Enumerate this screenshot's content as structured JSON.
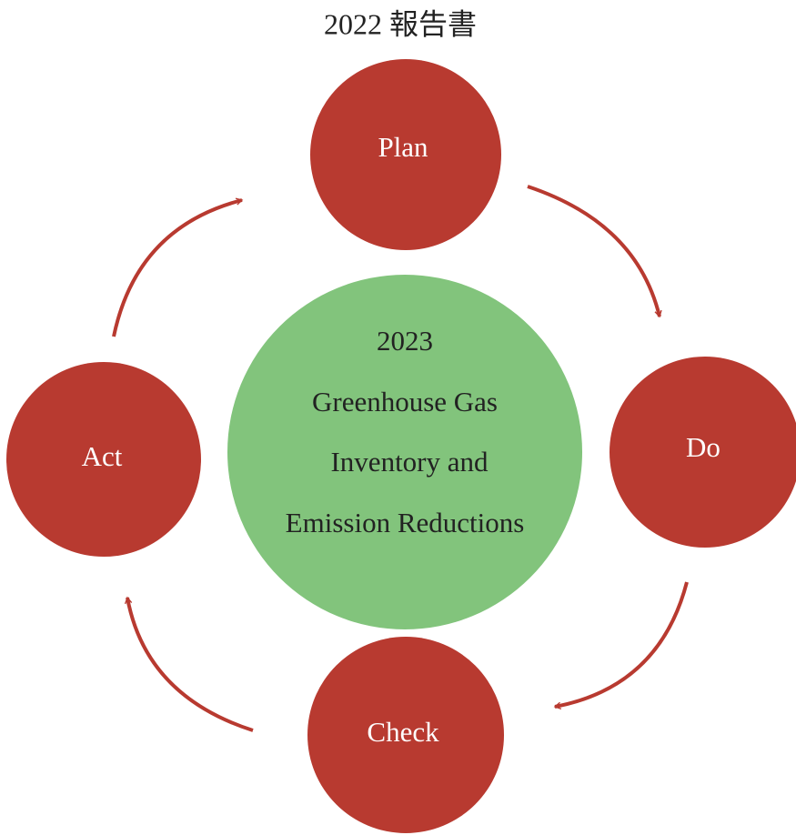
{
  "title": "2022 報告書",
  "center": {
    "lines": [
      "2023",
      "Greenhouse Gas",
      "Inventory and",
      "Emission Reductions"
    ]
  },
  "nodes": [
    {
      "label": "Plan"
    },
    {
      "label": "Do"
    },
    {
      "label": "Check"
    },
    {
      "label": "Act"
    }
  ]
}
